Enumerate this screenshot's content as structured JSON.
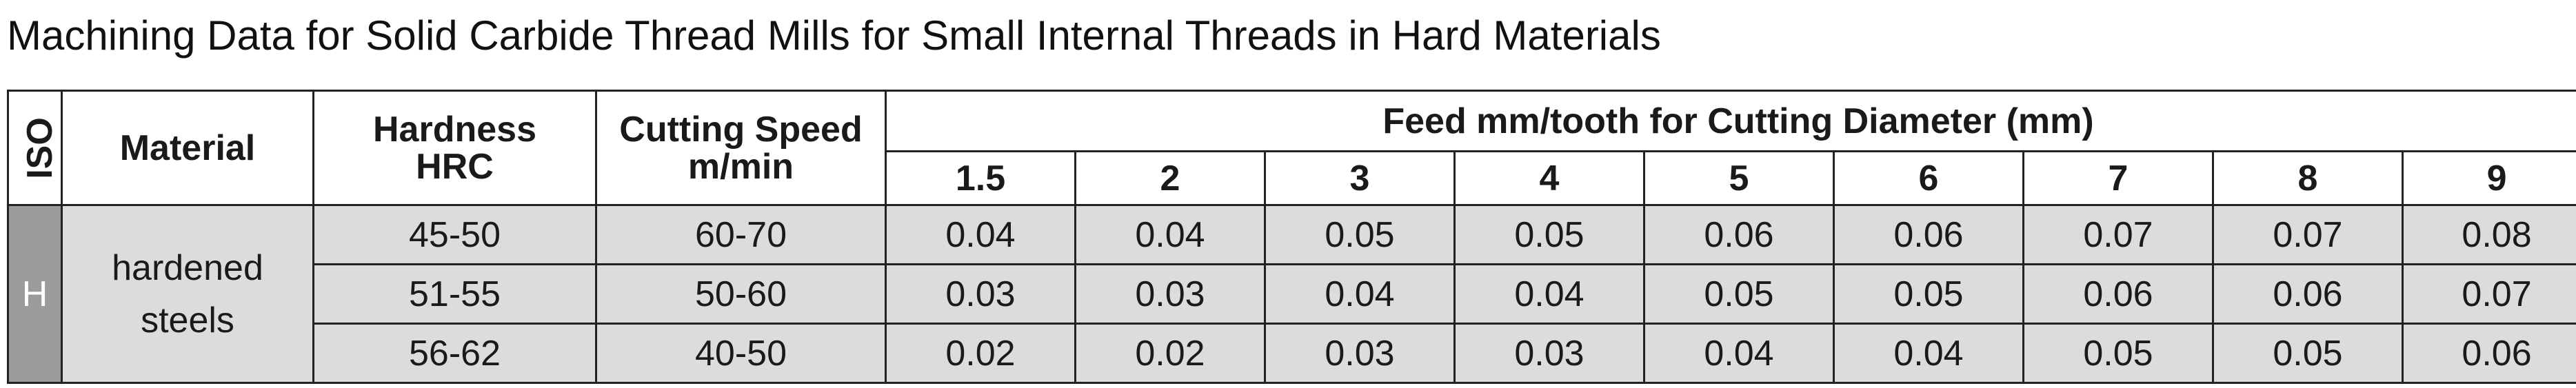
{
  "title": "Machining Data for Solid Carbide Thread Mills for Small Internal Threads in Hard Materials",
  "table": {
    "headers": {
      "iso": "ISO",
      "material": "Material",
      "hardness": [
        "Hardness",
        "HRC"
      ],
      "cutting_speed": [
        "Cutting Speed",
        "m/min"
      ],
      "feed_group": "Feed mm/tooth for Cutting Diameter (mm)",
      "diameters": [
        "1.5",
        "2",
        "3",
        "4",
        "5",
        "6",
        "7",
        "8",
        "9"
      ]
    },
    "iso_group": "H",
    "material": [
      "hardened",
      "steels"
    ],
    "rows": [
      {
        "hardness": "45-50",
        "speed": "60-70",
        "feeds": [
          "0.04",
          "0.04",
          "0.05",
          "0.05",
          "0.06",
          "0.06",
          "0.07",
          "0.07",
          "0.08"
        ]
      },
      {
        "hardness": "51-55",
        "speed": "50-60",
        "feeds": [
          "0.03",
          "0.03",
          "0.04",
          "0.04",
          "0.05",
          "0.05",
          "0.06",
          "0.06",
          "0.07"
        ]
      },
      {
        "hardness": "56-62",
        "speed": "40-50",
        "feeds": [
          "0.02",
          "0.02",
          "0.03",
          "0.03",
          "0.04",
          "0.04",
          "0.05",
          "0.05",
          "0.06"
        ]
      }
    ]
  },
  "colors": {
    "iso_cell_bg": "#9b9b9b",
    "data_cell_bg": "#dcdcdc",
    "border": "#222222"
  }
}
